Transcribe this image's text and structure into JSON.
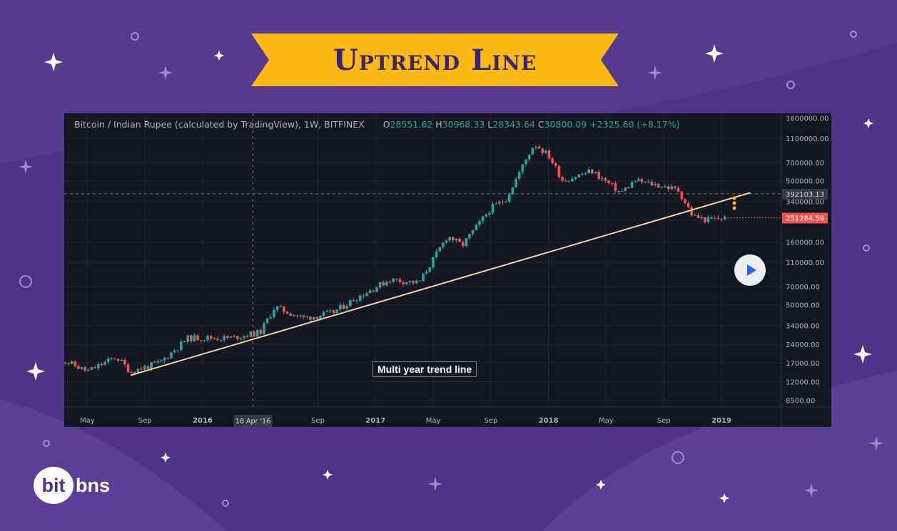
{
  "banner": {
    "title": "Uptrend Line"
  },
  "legend": {
    "symbol": "Bitcoin / Indian Rupee (calculated by TradingView), 1W, BITFINEX",
    "open_key": "O",
    "open": "28551.62",
    "high_key": "H",
    "high": "30968.33",
    "low_key": "L",
    "low": "28343.64",
    "close_key": "C",
    "close": "30800.09",
    "change": "+2325.60 (+8.17%)"
  },
  "annotation": "Multi year trend line",
  "logo": {
    "part1": "bit",
    "part2": "bns"
  },
  "colors": {
    "up": "#26a69a",
    "down": "#ef5350",
    "trendline": "#f6cfa4",
    "banner": "#fcb813"
  },
  "chart_data": {
    "type": "candlestick",
    "y_scale": "log",
    "ylim": [
      7500,
      1700000
    ],
    "y_ticks": [
      "1600000.00",
      "1100000.00",
      "700000.00",
      "500000.00",
      "340000.00",
      "240000.00",
      "160000.00",
      "110000.00",
      "70000.00",
      "50000.00",
      "34000.00",
      "24000.00",
      "17000.00",
      "12000.00",
      "8500.00"
    ],
    "x_ticks": [
      "May",
      "Sep",
      "2016",
      "Sep",
      "2017",
      "May",
      "Sep",
      "2018",
      "May",
      "Sep",
      "2019"
    ],
    "crosshair": {
      "x_label": "18 Apr '16",
      "y_label": "392103.13"
    },
    "last_price_label": "251284.59",
    "trend_line": {
      "from": [
        "2015-08",
        13500
      ],
      "to": [
        "2019-03",
        400000
      ]
    },
    "price_path": [
      [
        "2015-03",
        18500
      ],
      [
        "2015-05",
        14500
      ],
      [
        "2015-07",
        19000
      ],
      [
        "2015-08",
        14500
      ],
      [
        "2015-10",
        17000
      ],
      [
        "2015-12",
        27000
      ],
      [
        "2016-03",
        27000
      ],
      [
        "2016-05",
        30000
      ],
      [
        "2016-06",
        48000
      ],
      [
        "2016-08",
        39000
      ],
      [
        "2016-10",
        43000
      ],
      [
        "2016-12",
        60000
      ],
      [
        "2017-02",
        80000
      ],
      [
        "2017-04",
        75000
      ],
      [
        "2017-06",
        180000
      ],
      [
        "2017-07",
        150000
      ],
      [
        "2017-09",
        300000
      ],
      [
        "2017-10",
        350000
      ],
      [
        "2017-12",
        1000000
      ],
      [
        "2018-01",
        800000
      ],
      [
        "2018-02",
        500000
      ],
      [
        "2018-04",
        600000
      ],
      [
        "2018-06",
        400000
      ],
      [
        "2018-07",
        500000
      ],
      [
        "2018-09",
        450000
      ],
      [
        "2018-10",
        420000
      ],
      [
        "2018-11",
        260000
      ],
      [
        "2018-12",
        240000
      ],
      [
        "2019-01",
        250000
      ]
    ]
  }
}
